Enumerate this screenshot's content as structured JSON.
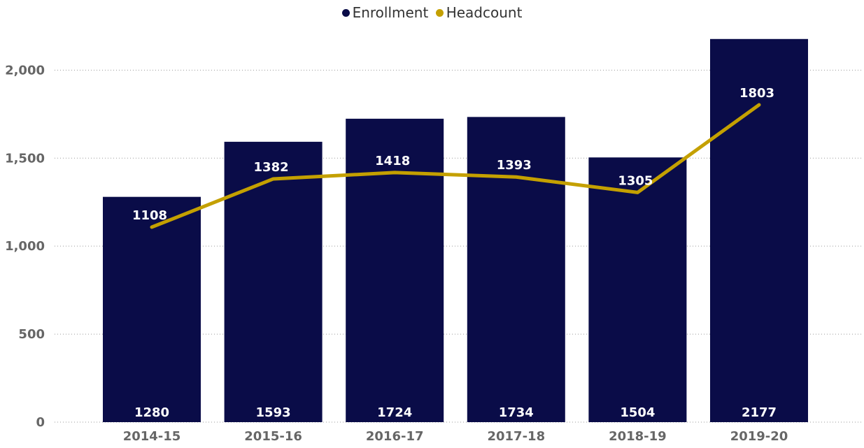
{
  "chart_data": {
    "type": "bar",
    "categories": [
      "2014-15",
      "2015-16",
      "2016-17",
      "2017-18",
      "2018-19",
      "2019-20"
    ],
    "series": [
      {
        "name": "Enrollment",
        "kind": "bar",
        "color": "#0a0c48",
        "values": [
          1280,
          1593,
          1724,
          1734,
          1504,
          2177
        ]
      },
      {
        "name": "Headcount",
        "kind": "line",
        "color": "#c4a000",
        "values": [
          1108,
          1382,
          1418,
          1393,
          1305,
          1803
        ]
      }
    ],
    "ylim": [
      0,
      2200
    ],
    "yticks": [
      0,
      500,
      1000,
      1500,
      2000
    ],
    "ytick_labels": [
      "0",
      "500",
      "1,000",
      "1,500",
      "2,000"
    ],
    "grid": true,
    "legend_position": "top-center",
    "title": "",
    "xlabel": "",
    "ylabel": ""
  }
}
